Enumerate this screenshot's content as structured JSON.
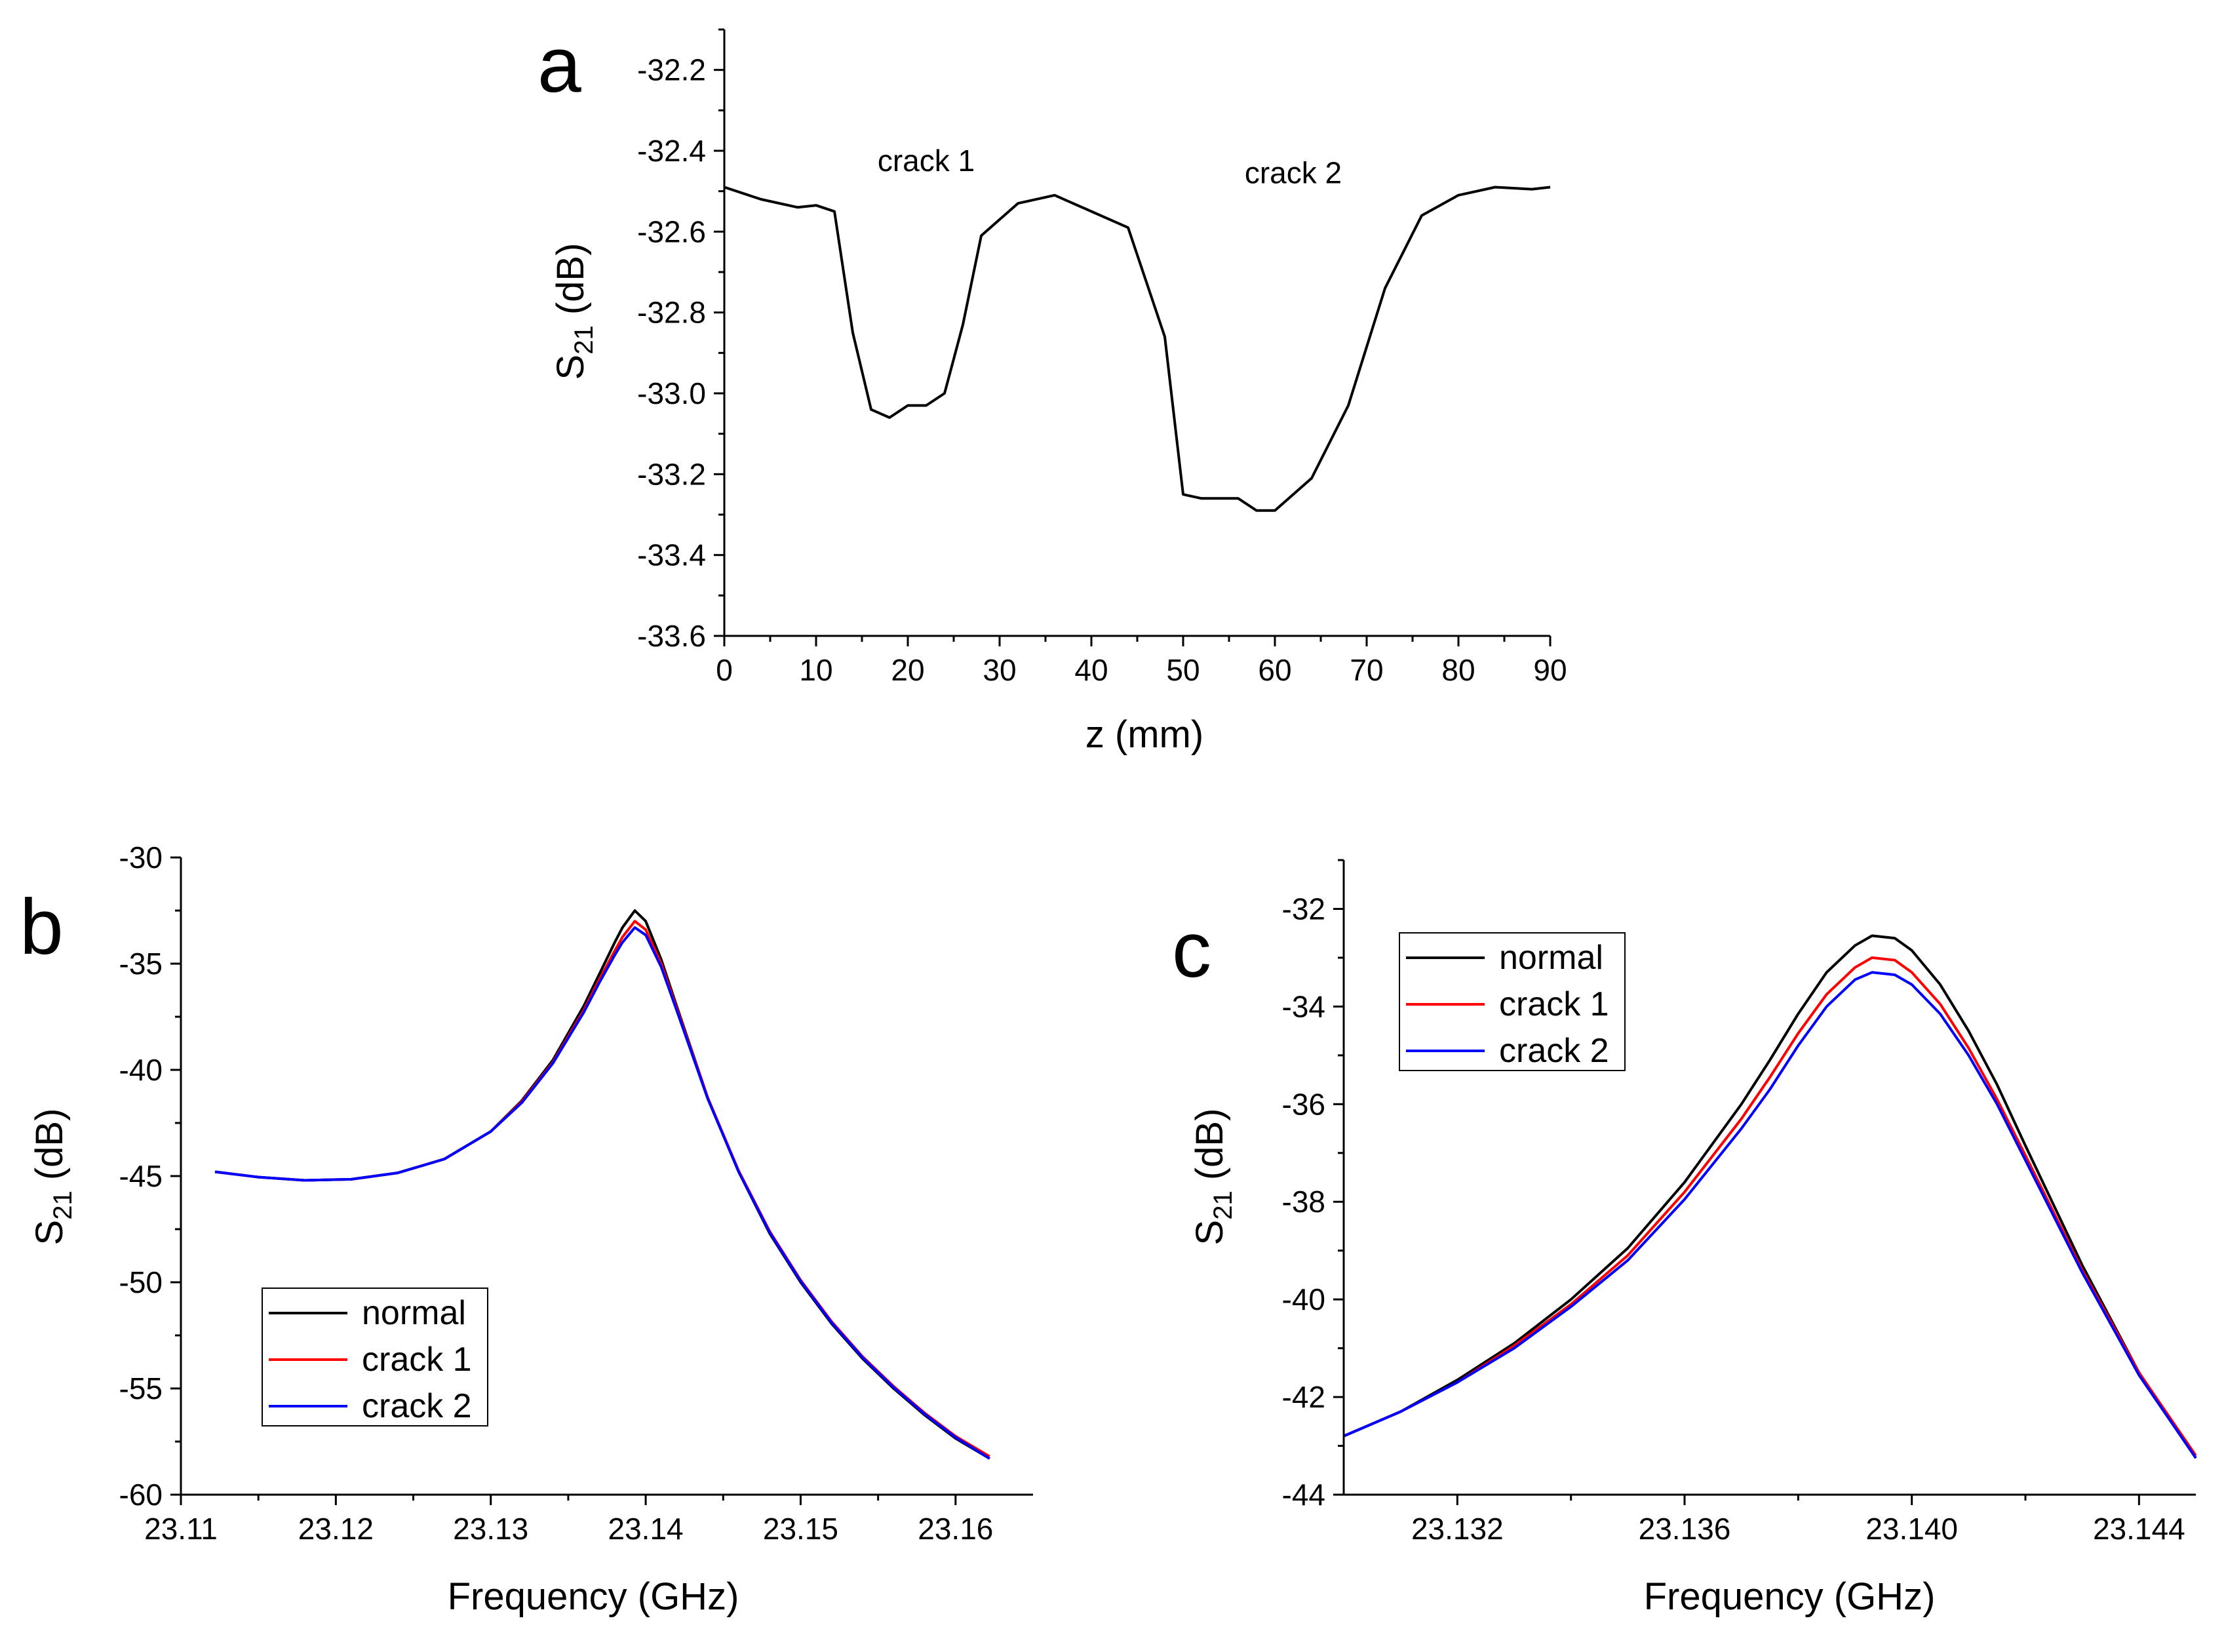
{
  "chart_data": [
    {
      "panel": "a",
      "type": "line",
      "title": "",
      "xlabel": "z (mm)",
      "ylabel_main": "S",
      "ylabel_sub": "21",
      "ylabel_unit": " (dB)",
      "xlim": [
        0,
        90
      ],
      "ylim": [
        -33.6,
        -32.1
      ],
      "xticks": [
        0,
        10,
        20,
        30,
        40,
        50,
        60,
        70,
        80,
        90
      ],
      "xtick_labels": [
        "0",
        "10",
        "20",
        "30",
        "40",
        "50",
        "60",
        "70",
        "80",
        "90"
      ],
      "yticks": [
        -33.6,
        -33.4,
        -33.2,
        -33.0,
        -32.8,
        -32.6,
        -32.4,
        -32.2
      ],
      "ytick_labels": [
        "-33.6",
        "-33.4",
        "-33.2",
        "-33.0",
        "-32.8",
        "-32.6",
        "-32.4",
        "-32.2"
      ],
      "grid": false,
      "annotations": [
        {
          "text": "crack 1",
          "x": 22,
          "y": -32.45
        },
        {
          "text": "crack 2",
          "x": 62,
          "y": -32.48
        }
      ],
      "series": [
        {
          "name": "S21",
          "color": "#000000",
          "x": [
            0,
            4,
            8,
            10,
            12,
            14,
            16,
            18,
            20,
            22,
            24,
            26,
            28,
            32,
            36,
            40,
            44,
            48,
            50,
            52,
            56,
            58,
            60,
            64,
            68,
            72,
            76,
            80,
            84,
            88,
            90
          ],
          "y": [
            -32.49,
            -32.52,
            -32.54,
            -32.535,
            -32.55,
            -32.85,
            -33.04,
            -33.06,
            -33.03,
            -33.03,
            -33.0,
            -32.83,
            -32.61,
            -32.53,
            -32.51,
            -32.55,
            -32.59,
            -32.86,
            -33.25,
            -33.26,
            -33.26,
            -33.29,
            -33.29,
            -33.21,
            -33.03,
            -32.74,
            -32.56,
            -32.51,
            -32.49,
            -32.495,
            -32.49
          ]
        }
      ]
    },
    {
      "panel": "b",
      "type": "line",
      "title": "",
      "xlabel": "Frequency (GHz)",
      "ylabel_main": "S",
      "ylabel_sub": "21",
      "ylabel_unit": " (dB)",
      "xlim": [
        23.11,
        23.165
      ],
      "ylim": [
        -60,
        -30
      ],
      "xticks": [
        23.11,
        23.12,
        23.13,
        23.14,
        23.15,
        23.16
      ],
      "xtick_labels": [
        "23.11",
        "23.12",
        "23.13",
        "23.14",
        "23.15",
        "23.16"
      ],
      "yticks": [
        -60,
        -55,
        -50,
        -45,
        -40,
        -35,
        -30
      ],
      "ytick_labels": [
        "-60",
        "-55",
        "-50",
        "-45",
        "-40",
        "-35",
        "-30"
      ],
      "grid": false,
      "legend_position": "bottom-left",
      "series": [
        {
          "name": "normal",
          "color": "#000000",
          "x": [
            23.1122,
            23.115,
            23.118,
            23.121,
            23.124,
            23.127,
            23.13,
            23.132,
            23.134,
            23.136,
            23.137,
            23.138,
            23.1385,
            23.1393,
            23.14,
            23.141,
            23.142,
            23.144,
            23.146,
            23.148,
            23.15,
            23.152,
            23.154,
            23.156,
            23.158,
            23.16,
            23.1622
          ],
          "y": [
            -44.8,
            -45.05,
            -45.2,
            -45.15,
            -44.85,
            -44.2,
            -42.9,
            -41.45,
            -39.55,
            -37.0,
            -35.5,
            -34.0,
            -33.3,
            -32.5,
            -33.0,
            -34.8,
            -37.0,
            -41.3,
            -44.8,
            -47.7,
            -50.0,
            -51.95,
            -53.6,
            -55.0,
            -56.25,
            -57.35,
            -58.3
          ]
        },
        {
          "name": "crack 1",
          "color": "#ff0000",
          "x": [
            23.1122,
            23.115,
            23.118,
            23.121,
            23.124,
            23.127,
            23.13,
            23.132,
            23.134,
            23.136,
            23.137,
            23.138,
            23.1385,
            23.1393,
            23.14,
            23.141,
            23.142,
            23.144,
            23.146,
            23.148,
            23.15,
            23.152,
            23.154,
            23.156,
            23.158,
            23.16,
            23.1622
          ],
          "y": [
            -44.8,
            -45.05,
            -45.2,
            -45.15,
            -44.85,
            -44.2,
            -42.9,
            -41.5,
            -39.65,
            -37.2,
            -35.75,
            -34.4,
            -33.75,
            -33.0,
            -33.4,
            -35.0,
            -37.1,
            -41.3,
            -44.75,
            -47.6,
            -49.9,
            -51.85,
            -53.5,
            -54.9,
            -56.15,
            -57.25,
            -58.2
          ]
        },
        {
          "name": "crack 2",
          "color": "#0000ff",
          "x": [
            23.1122,
            23.115,
            23.118,
            23.121,
            23.124,
            23.127,
            23.13,
            23.132,
            23.134,
            23.136,
            23.137,
            23.138,
            23.1385,
            23.1393,
            23.14,
            23.141,
            23.142,
            23.144,
            23.146,
            23.148,
            23.15,
            23.152,
            23.154,
            23.156,
            23.158,
            23.16,
            23.1622
          ],
          "y": [
            -44.8,
            -45.05,
            -45.2,
            -45.15,
            -44.85,
            -44.2,
            -42.9,
            -41.55,
            -39.7,
            -37.3,
            -35.9,
            -34.6,
            -34.0,
            -33.3,
            -33.65,
            -35.15,
            -37.2,
            -41.35,
            -44.8,
            -47.65,
            -49.95,
            -51.9,
            -53.55,
            -54.95,
            -56.2,
            -57.3,
            -58.3
          ]
        }
      ]
    },
    {
      "panel": "c",
      "type": "line",
      "title": "",
      "xlabel": "Frequency (GHz)",
      "ylabel_main": "S",
      "ylabel_sub": "21",
      "ylabel_unit": " (dB)",
      "xlim": [
        23.13,
        23.145
      ],
      "ylim": [
        -44,
        -31
      ],
      "xticks": [
        23.132,
        23.136,
        23.14,
        23.144
      ],
      "xtick_labels": [
        "23.132",
        "23.136",
        "23.140",
        "23.144"
      ],
      "yticks": [
        -44,
        -42,
        -40,
        -38,
        -36,
        -34,
        -32
      ],
      "ytick_labels": [
        "-44",
        "-42",
        "-40",
        "-38",
        "-36",
        "-34",
        "-32"
      ],
      "grid": false,
      "legend_position": "top-left",
      "series": [
        {
          "name": "normal",
          "color": "#000000",
          "x": [
            23.13,
            23.131,
            23.132,
            23.133,
            23.134,
            23.135,
            23.136,
            23.137,
            23.1375,
            23.138,
            23.1385,
            23.139,
            23.1393,
            23.1397,
            23.14,
            23.1405,
            23.141,
            23.1415,
            23.142,
            23.143,
            23.144,
            23.145
          ],
          "y": [
            -42.8,
            -42.3,
            -41.65,
            -40.9,
            -40.0,
            -38.95,
            -37.6,
            -36.0,
            -35.1,
            -34.15,
            -33.3,
            -32.75,
            -32.55,
            -32.6,
            -32.85,
            -33.55,
            -34.5,
            -35.6,
            -36.85,
            -39.3,
            -41.5,
            -43.25
          ]
        },
        {
          "name": "crack 1",
          "color": "#ff0000",
          "x": [
            23.13,
            23.131,
            23.132,
            23.133,
            23.134,
            23.135,
            23.136,
            23.137,
            23.1375,
            23.138,
            23.1385,
            23.139,
            23.1393,
            23.1397,
            23.14,
            23.1405,
            23.141,
            23.1415,
            23.142,
            23.143,
            23.144,
            23.145
          ],
          "y": [
            -42.8,
            -42.3,
            -41.7,
            -40.95,
            -40.1,
            -39.1,
            -37.8,
            -36.3,
            -35.45,
            -34.55,
            -33.75,
            -33.2,
            -33.0,
            -33.05,
            -33.3,
            -33.95,
            -34.85,
            -35.9,
            -37.05,
            -39.4,
            -41.5,
            -43.2
          ]
        },
        {
          "name": "crack 2",
          "color": "#0000ff",
          "x": [
            23.13,
            23.131,
            23.132,
            23.133,
            23.134,
            23.135,
            23.136,
            23.137,
            23.1375,
            23.138,
            23.1385,
            23.139,
            23.1393,
            23.1397,
            23.14,
            23.1405,
            23.141,
            23.1415,
            23.142,
            23.143,
            23.144,
            23.145
          ],
          "y": [
            -42.8,
            -42.3,
            -41.7,
            -41.0,
            -40.15,
            -39.2,
            -37.95,
            -36.5,
            -35.7,
            -34.8,
            -34.0,
            -33.45,
            -33.3,
            -33.35,
            -33.55,
            -34.15,
            -35.0,
            -36.0,
            -37.15,
            -39.45,
            -41.55,
            -43.25
          ]
        }
      ]
    }
  ],
  "panel_letters": [
    "a",
    "b",
    "c"
  ]
}
